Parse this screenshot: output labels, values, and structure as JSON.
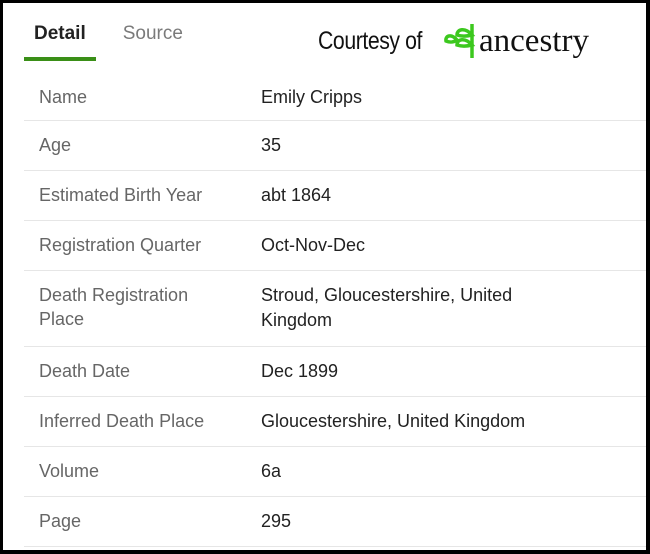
{
  "tabs": [
    {
      "label": "Detail",
      "active": true
    },
    {
      "label": "Source",
      "active": false
    }
  ],
  "logo": {
    "courtesy": "Courtesy of",
    "brand": "ancestry",
    "accent": "#3cc81e"
  },
  "rows": [
    {
      "label": "Name",
      "value": "Emily Cripps"
    },
    {
      "label": "Age",
      "value": "35"
    },
    {
      "label": "Estimated Birth Year",
      "value": "abt 1864"
    },
    {
      "label": "Registration Quarter",
      "value": "Oct-Nov-Dec"
    },
    {
      "label": "Death Registration Place",
      "value": "Stroud, Gloucestershire, United Kingdom"
    },
    {
      "label": "Death Date",
      "value": "Dec 1899"
    },
    {
      "label": "Inferred Death Place",
      "value": "Gloucestershire, United Kingdom"
    },
    {
      "label": "Volume",
      "value": "6a"
    },
    {
      "label": "Page",
      "value": "295"
    }
  ]
}
